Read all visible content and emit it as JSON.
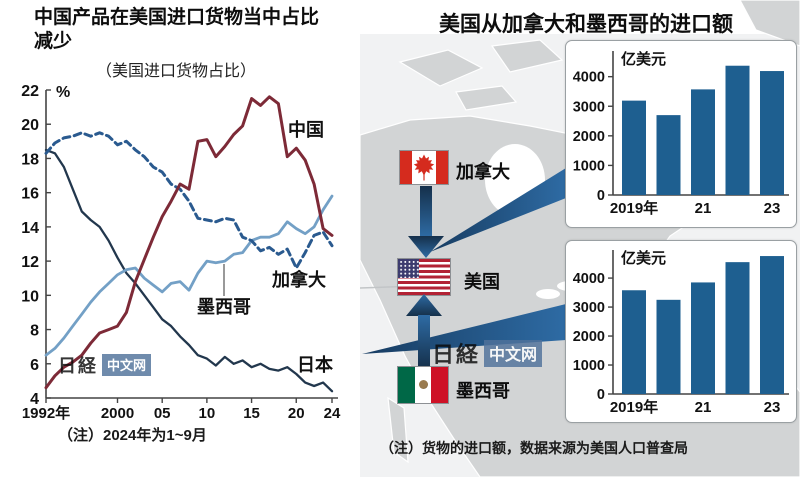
{
  "left_panel": {
    "title_line1": "中国产品在美国进口货物当中占比",
    "title_line2": "减少",
    "subtitle": "（美国进口货物占比）",
    "note": "（注）2024年为1~9月",
    "watermark": {
      "nikkei": "日経",
      "badge": "中文网"
    }
  },
  "right_panel": {
    "title": "美国从加拿大和墨西哥的进口额",
    "note": "（注）货物的进口额，数据来源为美国人口普查局",
    "flags": [
      {
        "name": "canada",
        "label": "加拿大"
      },
      {
        "name": "usa",
        "label": "美国"
      },
      {
        "name": "mexico",
        "label": "墨西哥"
      }
    ],
    "watermark": {
      "nikkei": "日経",
      "badge": "中文网"
    }
  },
  "colors": {
    "china_line": "#7d2a37",
    "canada_line": "#2a5a8f",
    "mexico_line": "#73a0c6",
    "japan_line": "#22374d",
    "bar": "#1e5f90",
    "axis": "#444444",
    "arrow_dark": "#15304b",
    "arrow_light": "#2e6ba4",
    "map_land": "#d2d4d5"
  },
  "chart_data": [
    {
      "type": "line",
      "title": "中国产品在美国进口货物当中占比减少",
      "subtitle": "（美国进口货物占比）",
      "unit": "%",
      "x_start": 1992,
      "x_end": 2024,
      "ylim": [
        4,
        22
      ],
      "ytick_step": 2,
      "grid": false,
      "xticks": [
        {
          "year": 1992,
          "label": "1992年"
        },
        {
          "year": 2000,
          "label": "2000"
        },
        {
          "year": 2005,
          "label": "05"
        },
        {
          "year": 2010,
          "label": "10"
        },
        {
          "year": 2015,
          "label": "15"
        },
        {
          "year": 2020,
          "label": "20"
        },
        {
          "year": 2024,
          "label": "24"
        }
      ],
      "series": [
        {
          "key": "japan",
          "name": "日本",
          "color": "#22374d",
          "width": 2.3,
          "dash": null,
          "values": [
            18.5,
            18.3,
            17.5,
            16.2,
            14.9,
            14.4,
            14.0,
            13.2,
            12.2,
            11.3,
            10.7,
            10.0,
            9.3,
            8.6,
            8.2,
            7.6,
            7.1,
            6.5,
            6.3,
            5.9,
            6.4,
            6.0,
            6.2,
            5.8,
            6.0,
            5.7,
            5.6,
            5.8,
            5.4,
            4.9,
            4.7,
            4.9,
            4.4
          ]
        },
        {
          "key": "mexico",
          "name": "墨西哥",
          "color": "#73a0c6",
          "width": 2.8,
          "dash": null,
          "values": [
            6.5,
            6.9,
            7.5,
            8.2,
            8.9,
            9.6,
            10.2,
            10.7,
            11.2,
            11.5,
            11.6,
            11.0,
            10.6,
            10.2,
            10.7,
            10.8,
            10.3,
            11.3,
            12.0,
            11.9,
            12.0,
            12.4,
            12.5,
            13.2,
            13.4,
            13.4,
            13.6,
            14.3,
            13.9,
            13.6,
            14.0,
            15.0,
            15.8
          ]
        },
        {
          "key": "canada",
          "name": "加拿大",
          "color": "#2a5a8f",
          "width": 3.0,
          "dash": "7 4.5",
          "values": [
            18.3,
            18.9,
            19.2,
            19.3,
            19.5,
            19.3,
            19.5,
            19.3,
            18.8,
            19.0,
            18.5,
            18.1,
            17.5,
            17.2,
            16.5,
            16.2,
            15.5,
            14.5,
            14.4,
            14.3,
            14.5,
            14.4,
            13.4,
            13.2,
            12.6,
            12.8,
            12.4,
            12.7,
            11.6,
            12.5,
            13.5,
            13.7,
            12.9
          ]
        },
        {
          "key": "china",
          "name": "中国",
          "color": "#7d2a37",
          "width": 3.0,
          "dash": null,
          "values": [
            4.6,
            5.3,
            5.8,
            6.1,
            6.5,
            7.2,
            7.8,
            8.0,
            8.2,
            9.0,
            10.8,
            12.1,
            13.4,
            14.6,
            15.5,
            16.5,
            16.2,
            19.0,
            19.1,
            18.1,
            18.7,
            19.4,
            19.9,
            21.5,
            21.1,
            21.6,
            21.2,
            18.1,
            18.6,
            17.9,
            16.5,
            13.9,
            13.5
          ]
        }
      ],
      "note": "（注）2024年为1~9月"
    },
    {
      "type": "bar",
      "title": "美国从加拿大的进口额",
      "country": "加拿大",
      "unit": "亿美元",
      "categories": [
        "2019",
        "2020",
        "2021",
        "2022",
        "2023"
      ],
      "values": [
        3190,
        2700,
        3570,
        4370,
        4190
      ],
      "ylim": [
        0,
        4800
      ],
      "yticks": [
        0,
        1000,
        2000,
        3000,
        4000
      ],
      "visible_xticks": [
        {
          "index": 0,
          "label": "2019年"
        },
        {
          "index": 2,
          "label": "21"
        },
        {
          "index": 4,
          "label": "23"
        }
      ],
      "bar_color": "#1e5f90"
    },
    {
      "type": "bar",
      "title": "美国从墨西哥的进口额",
      "country": "墨西哥",
      "unit": "亿美元",
      "categories": [
        "2019",
        "2020",
        "2021",
        "2022",
        "2023"
      ],
      "values": [
        3580,
        3250,
        3850,
        4550,
        4760
      ],
      "ylim": [
        0,
        4900
      ],
      "yticks": [
        0,
        1000,
        2000,
        3000,
        4000
      ],
      "visible_xticks": [
        {
          "index": 0,
          "label": "2019年"
        },
        {
          "index": 2,
          "label": "21"
        },
        {
          "index": 4,
          "label": "23"
        }
      ],
      "bar_color": "#1e5f90"
    }
  ]
}
